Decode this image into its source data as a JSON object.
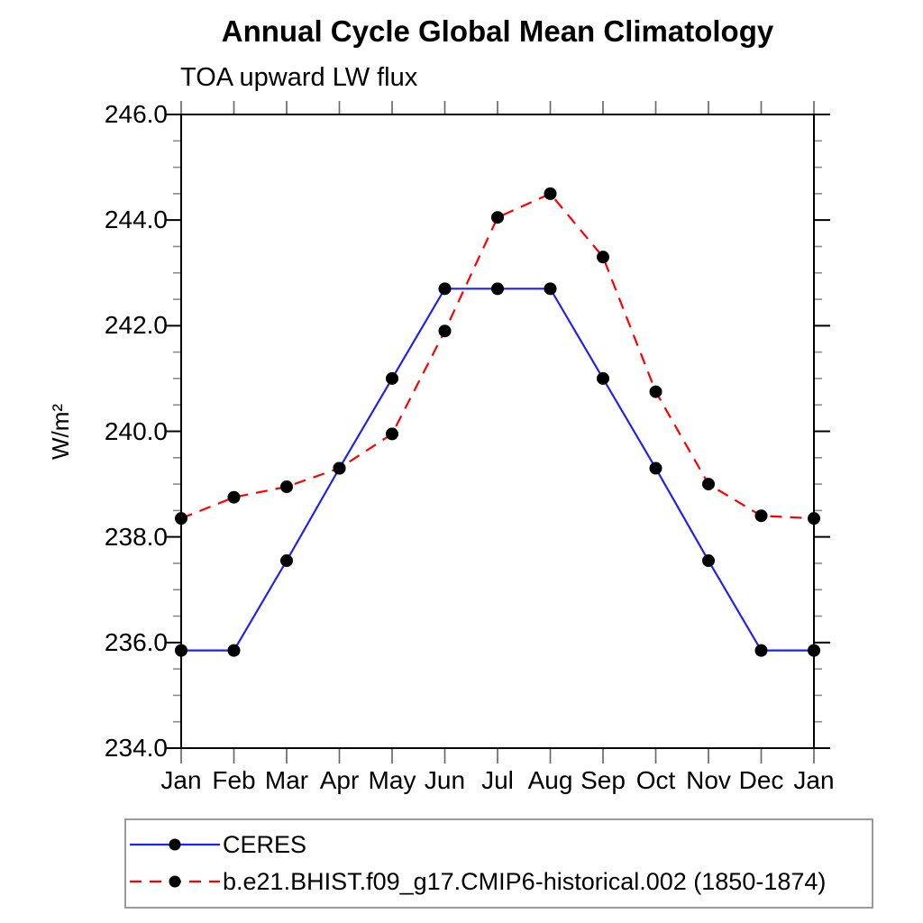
{
  "title": "Annual Cycle Global Mean Climatology",
  "subtitle": "TOA upward LW flux",
  "chart_data": {
    "type": "line",
    "x_categories": [
      "Jan",
      "Feb",
      "Mar",
      "Apr",
      "May",
      "Jun",
      "Jul",
      "Aug",
      "Sep",
      "Oct",
      "Nov",
      "Dec",
      "Jan"
    ],
    "xlabel": "",
    "ylabel": "W/m²",
    "ylim": [
      234.0,
      246.0
    ],
    "ytick_major": 2.0,
    "ytick_minor": 0.5,
    "ytick_labels": [
      "234.0",
      "236.0",
      "238.0",
      "240.0",
      "242.0",
      "244.0",
      "246.0"
    ],
    "grid": false,
    "legend_position": "bottom-left-boxed",
    "series": [
      {
        "name": "CERES",
        "color": "#2222ee",
        "line_style": "solid",
        "marker": "circle",
        "marker_color": "#000000",
        "values": [
          235.85,
          235.85,
          237.55,
          239.3,
          241.0,
          242.7,
          242.7,
          242.7,
          241.0,
          239.3,
          237.55,
          235.85,
          235.85
        ]
      },
      {
        "name": "b.e21.BHIST.f09_g17.CMIP6-historical.002 (1850-1874)",
        "color": "#ff0000",
        "line_style": "dashed",
        "marker": "circle",
        "marker_color": "#000000",
        "values": [
          238.35,
          238.75,
          238.95,
          239.3,
          239.95,
          241.9,
          244.05,
          244.5,
          243.3,
          240.75,
          239.0,
          238.4,
          238.35
        ]
      }
    ]
  }
}
